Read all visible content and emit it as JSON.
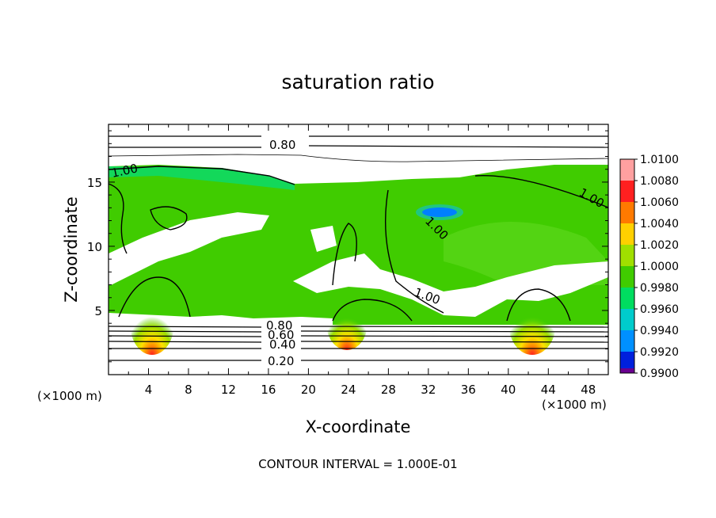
{
  "chart_data": {
    "type": "heatmap",
    "title": "saturation ratio",
    "xlabel": "X-coordinate",
    "ylabel": "Z-coordinate",
    "x_unit": "(×1000 m)",
    "x_unit_right": "(×1000 m)",
    "xlim": [
      0,
      50
    ],
    "ylim": [
      0,
      19.5
    ],
    "x_ticks": [
      "4",
      "8",
      "12",
      "16",
      "20",
      "24",
      "28",
      "32",
      "36",
      "40",
      "44",
      "48"
    ],
    "y_ticks": [
      "5",
      "10",
      "15"
    ],
    "colorbar_labels": [
      "1.0100",
      "1.0080",
      "1.0060",
      "1.0040",
      "1.0020",
      "1.0000",
      "0.9980",
      "0.9960",
      "0.9940",
      "0.9920",
      "0.9900"
    ],
    "colorbar_colors": [
      "#ffa0a0",
      "#ff2020",
      "#ff7a00",
      "#ffd000",
      "#a0e000",
      "#40cc00",
      "#00dd60",
      "#00cccc",
      "#0090ff",
      "#0020dd",
      "#6a0090"
    ],
    "contour_labels": [
      "0.80",
      "1.00",
      "1.00",
      "1.00",
      "1.00",
      "0.80",
      "0.60",
      "0.40",
      "0.20"
    ],
    "footnote": "CONTOUR INTERVAL = 1.000E-01"
  }
}
